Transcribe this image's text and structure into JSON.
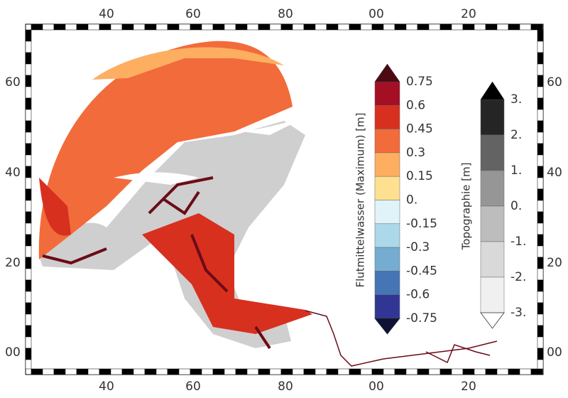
{
  "map": {
    "x_labels": [
      "40",
      "60",
      "80",
      "00",
      "20"
    ],
    "y_labels": [
      "60",
      "40",
      "20",
      "00"
    ],
    "colorbars": [
      {
        "title": "Flutmittelwasser (Maximum) [m]",
        "labels": [
          "0.75",
          "0.6",
          "0.45",
          "0.3",
          "0.15",
          "0.",
          "-0.15",
          "-0.3",
          "-0.45",
          "-0.6",
          "-0.75"
        ],
        "colors": [
          "#a50f26",
          "#d7301f",
          "#f26b3a",
          "#fdae61",
          "#fee090",
          "#e0f3f8",
          "#abd9e9",
          "#74add1",
          "#4575b4",
          "#313695"
        ],
        "over_color": "#4d0a12",
        "under_color": "#0d1236"
      },
      {
        "title": "Topographie [m]",
        "labels": [
          "3.",
          "2.",
          "1.",
          "0.",
          "-1.",
          "-2.",
          "-3."
        ],
        "colors": [
          "#252525",
          "#636363",
          "#969696",
          "#bdbdbd",
          "#d9d9d9",
          "#f0f0f0"
        ],
        "over_color": "#000000",
        "under_color": "#ffffff"
      }
    ]
  }
}
